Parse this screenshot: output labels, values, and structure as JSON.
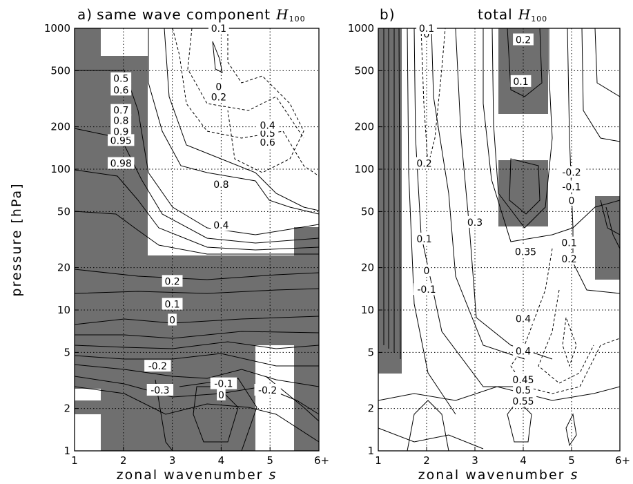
{
  "chart_data": [
    {
      "type": "heatmap",
      "title_prefix": "a)",
      "title": "same wave component",
      "title_math": "H",
      "title_sub": "100",
      "xlabel": "zonal wavenumber",
      "xlabel_var": "s",
      "ylabel": "pressure [hPa]",
      "x_ticks": [
        "1",
        "2",
        "3",
        "4",
        "5",
        "6+"
      ],
      "y_ticks": [
        "1",
        "2",
        "5",
        "10",
        "20",
        "50",
        "100",
        "200",
        "500",
        "1000"
      ],
      "y_scale": "log",
      "y_range_hPa": [
        1000,
        1
      ],
      "x_range": [
        1,
        6
      ],
      "grid": true,
      "shading": "grey where value is statistically significant",
      "contour_labels": [
        {
          "text": "-0.3",
          "x": 2.75,
          "p": 2.7
        },
        {
          "text": "0",
          "x": 4.0,
          "p": 2.5
        },
        {
          "text": "-0.1",
          "x": 4.05,
          "p": 3.0
        },
        {
          "text": "-0.2",
          "x": 4.95,
          "p": 2.7
        },
        {
          "text": "-0.2",
          "x": 2.7,
          "p": 4.0
        },
        {
          "text": "0",
          "x": 3.0,
          "p": 8.5
        },
        {
          "text": "0.1",
          "x": 3.0,
          "p": 11
        },
        {
          "text": "0.2",
          "x": 3.0,
          "p": 16
        },
        {
          "text": "0.4",
          "x": 4.0,
          "p": 40
        },
        {
          "text": "0.8",
          "x": 4.0,
          "p": 78
        },
        {
          "text": "0.98",
          "x": 1.95,
          "p": 110
        },
        {
          "text": "0.95",
          "x": 1.95,
          "p": 160
        },
        {
          "text": "0.9",
          "x": 1.95,
          "p": 185
        },
        {
          "text": "0.8",
          "x": 1.95,
          "p": 222
        },
        {
          "text": "0.7",
          "x": 1.95,
          "p": 262
        },
        {
          "text": "0.6",
          "x": 1.95,
          "p": 365
        },
        {
          "text": "0.5",
          "x": 1.95,
          "p": 440
        },
        {
          "text": "0.6",
          "x": 4.95,
          "p": 155
        },
        {
          "text": "0.5",
          "x": 4.95,
          "p": 180
        },
        {
          "text": "0.4",
          "x": 4.95,
          "p": 205
        },
        {
          "text": "0.2",
          "x": 3.95,
          "p": 325
        },
        {
          "text": "0",
          "x": 3.95,
          "p": 385
        },
        {
          "text": "0.1",
          "x": 3.95,
          "p": 1000
        }
      ]
    },
    {
      "type": "heatmap",
      "title_prefix": "b)",
      "title": "total",
      "title_math": "H",
      "title_sub": "100",
      "xlabel": "zonal wavenumber",
      "xlabel_var": "s",
      "x_ticks": [
        "1",
        "2",
        "3",
        "4",
        "5",
        "6+"
      ],
      "y_ticks": [
        "1",
        "2",
        "5",
        "10",
        "20",
        "50",
        "100",
        "200",
        "500",
        "1000"
      ],
      "y_scale": "log",
      "y_range_hPa": [
        1000,
        1
      ],
      "x_range": [
        1,
        6
      ],
      "grid": true,
      "shading": "grey where value is statistically significant",
      "contour_labels": [
        {
          "text": "0.55",
          "x": 4.0,
          "p": 2.25
        },
        {
          "text": "0.5",
          "x": 4.0,
          "p": 2.7
        },
        {
          "text": "0.45",
          "x": 4.0,
          "p": 3.2
        },
        {
          "text": "0.4",
          "x": 4.0,
          "p": 5.1
        },
        {
          "text": "0.4",
          "x": 4.0,
          "p": 8.7
        },
        {
          "text": "0.35",
          "x": 4.05,
          "p": 26
        },
        {
          "text": "-0.1",
          "x": 2.0,
          "p": 14
        },
        {
          "text": "0",
          "x": 2.0,
          "p": 19
        },
        {
          "text": "0.1",
          "x": 1.95,
          "p": 32
        },
        {
          "text": "0.3",
          "x": 3.0,
          "p": 42
        },
        {
          "text": "0.2",
          "x": 4.95,
          "p": 23
        },
        {
          "text": "0.1",
          "x": 4.95,
          "p": 30
        },
        {
          "text": "0",
          "x": 5.0,
          "p": 60
        },
        {
          "text": "-0.1",
          "x": 5.0,
          "p": 75
        },
        {
          "text": "-0.2",
          "x": 5.0,
          "p": 95
        },
        {
          "text": "0.2",
          "x": 1.95,
          "p": 110
        },
        {
          "text": "0.1",
          "x": 3.95,
          "p": 420
        },
        {
          "text": "0.2",
          "x": 4.0,
          "p": 830
        },
        {
          "text": "0",
          "x": 2.0,
          "p": 910
        },
        {
          "text": "0.1",
          "x": 2.0,
          "p": 1000
        }
      ]
    }
  ]
}
